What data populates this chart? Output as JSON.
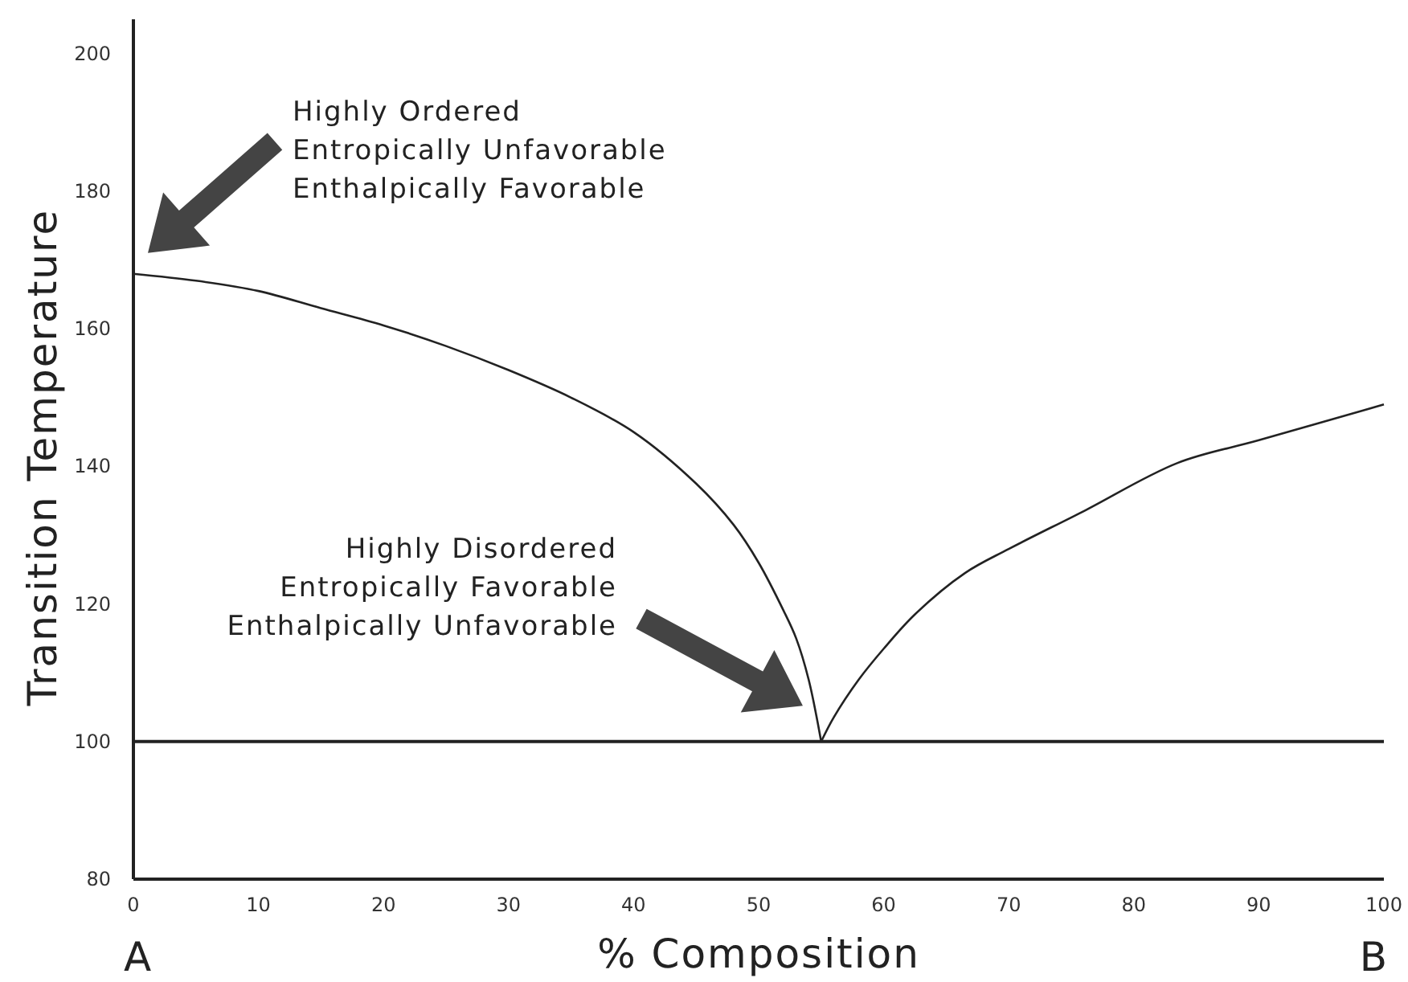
{
  "chart_data": {
    "type": "line",
    "xlabel": "% Composition",
    "ylabel": "Transition Temperature",
    "xlim": [
      0,
      100
    ],
    "ylim": [
      80,
      205
    ],
    "xticks": [
      0,
      10,
      20,
      30,
      40,
      50,
      60,
      70,
      80,
      90,
      100
    ],
    "yticks": [
      80,
      100,
      120,
      140,
      160,
      180,
      200
    ],
    "grid": false,
    "series": [
      {
        "color": "#222222",
        "x": [
          0,
          5,
          10,
          15,
          20,
          25,
          30,
          35,
          40,
          45,
          48,
          50,
          52,
          53,
          54,
          55
        ],
        "values": [
          168,
          167,
          165.5,
          163,
          160.5,
          157.5,
          154,
          150,
          145,
          137.5,
          131.5,
          126,
          119,
          115,
          109,
          100
        ]
      },
      {
        "color": "#222222",
        "x": [
          55,
          56,
          58,
          60,
          62.5,
          66.5,
          70,
          76,
          83.5,
          90,
          100
        ],
        "values": [
          100,
          103.5,
          109,
          113.5,
          118.5,
          124.5,
          128,
          133.5,
          140.5,
          143.8,
          149
        ]
      }
    ],
    "ref_lines": [
      {
        "axis": "y",
        "value": 100,
        "color": "#222222"
      }
    ],
    "annotations": [
      "Highly Ordered\nEntropically Unfavorable\nEnthalpically Favorable",
      "Highly Disordered\nEntropically Favorable\nEnthalpically Unfavorable",
      "A",
      "B"
    ]
  }
}
